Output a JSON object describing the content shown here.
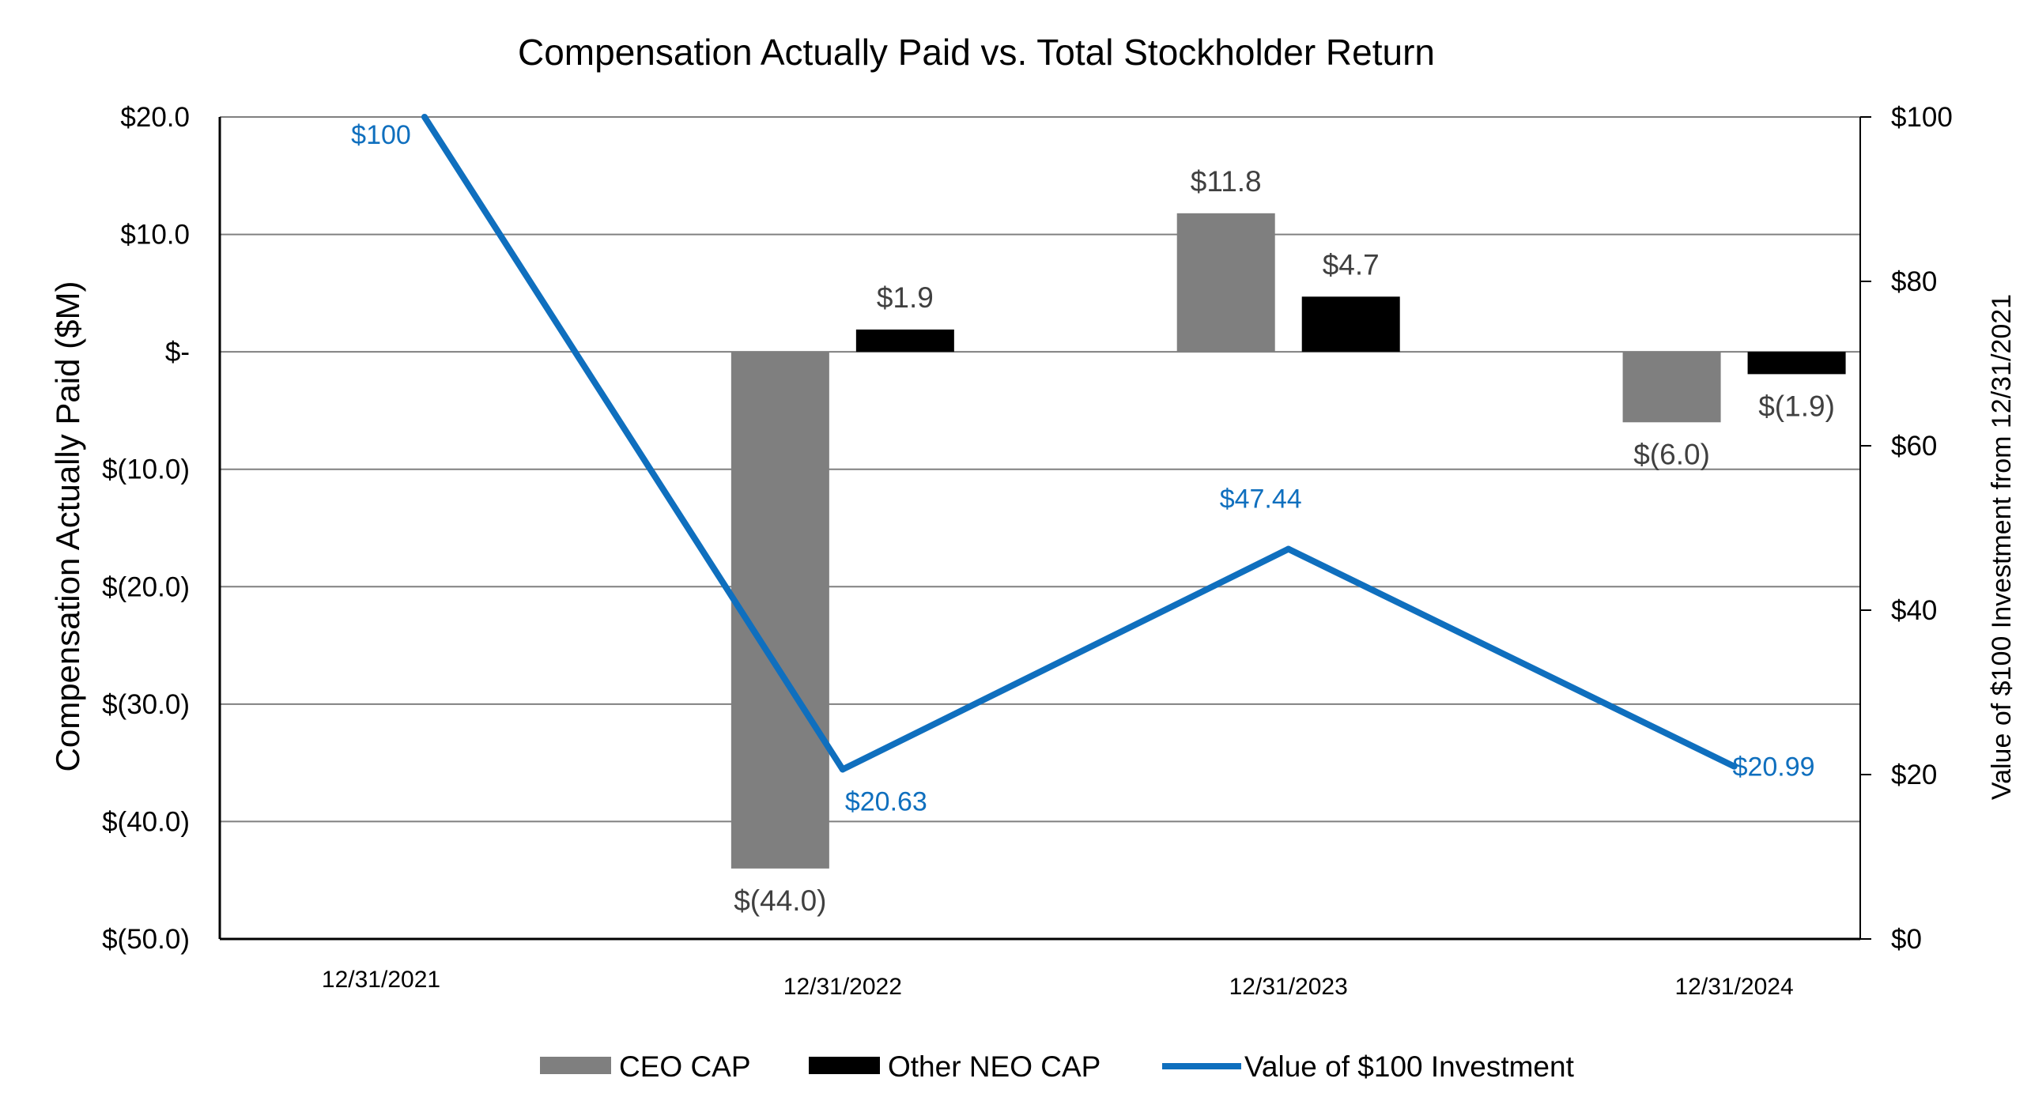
{
  "chart_data": {
    "type": "bar",
    "title": "Compensation Actually Paid  vs. Total Stockholder Return",
    "categories": [
      "12/31/2021",
      "12/31/2022",
      "12/31/2023",
      "12/31/2024"
    ],
    "ylabel": "Compensation Actually Paid ($M)",
    "y2label": "Value of $100 Investment from 12/31/2021",
    "ylim": [
      -50,
      20
    ],
    "y2lim": [
      0,
      100
    ],
    "yticks": [
      {
        "value": 20,
        "label": "$20.0"
      },
      {
        "value": 10,
        "label": "$10.0"
      },
      {
        "value": 0,
        "label": "$-"
      },
      {
        "value": -10,
        "label": "$(10.0)"
      },
      {
        "value": -20,
        "label": "$(20.0)"
      },
      {
        "value": -30,
        "label": "$(30.0)"
      },
      {
        "value": -40,
        "label": "$(40.0)"
      },
      {
        "value": -50,
        "label": "$(50.0)"
      }
    ],
    "y2ticks": [
      {
        "value": 100,
        "label": "$100"
      },
      {
        "value": 80,
        "label": "$80"
      },
      {
        "value": 60,
        "label": "$60"
      },
      {
        "value": 40,
        "label": "$40"
      },
      {
        "value": 20,
        "label": "$20"
      },
      {
        "value": 0,
        "label": "$0"
      }
    ],
    "grid": true,
    "legend_position": "bottom",
    "series": [
      {
        "name": "CEO CAP",
        "kind": "bar",
        "axis": "left",
        "color": "#7f7f7f",
        "values": [
          null,
          -44.0,
          11.8,
          -6.0
        ],
        "labels": [
          null,
          "$(44.0)",
          "$11.8",
          "$(6.0)"
        ]
      },
      {
        "name": "Other NEO CAP",
        "kind": "bar",
        "axis": "left",
        "color": "#000000",
        "values": [
          null,
          1.9,
          4.7,
          -1.9
        ],
        "labels": [
          null,
          "$1.9",
          "$4.7",
          "$(1.9)"
        ]
      },
      {
        "name": "Value of $100 Investment",
        "kind": "line",
        "axis": "right",
        "color": "#0f6fbe",
        "values": [
          100,
          20.63,
          47.44,
          20.99
        ],
        "labels": [
          "$100",
          "$20.63",
          "$47.44",
          "$20.99"
        ]
      }
    ]
  }
}
